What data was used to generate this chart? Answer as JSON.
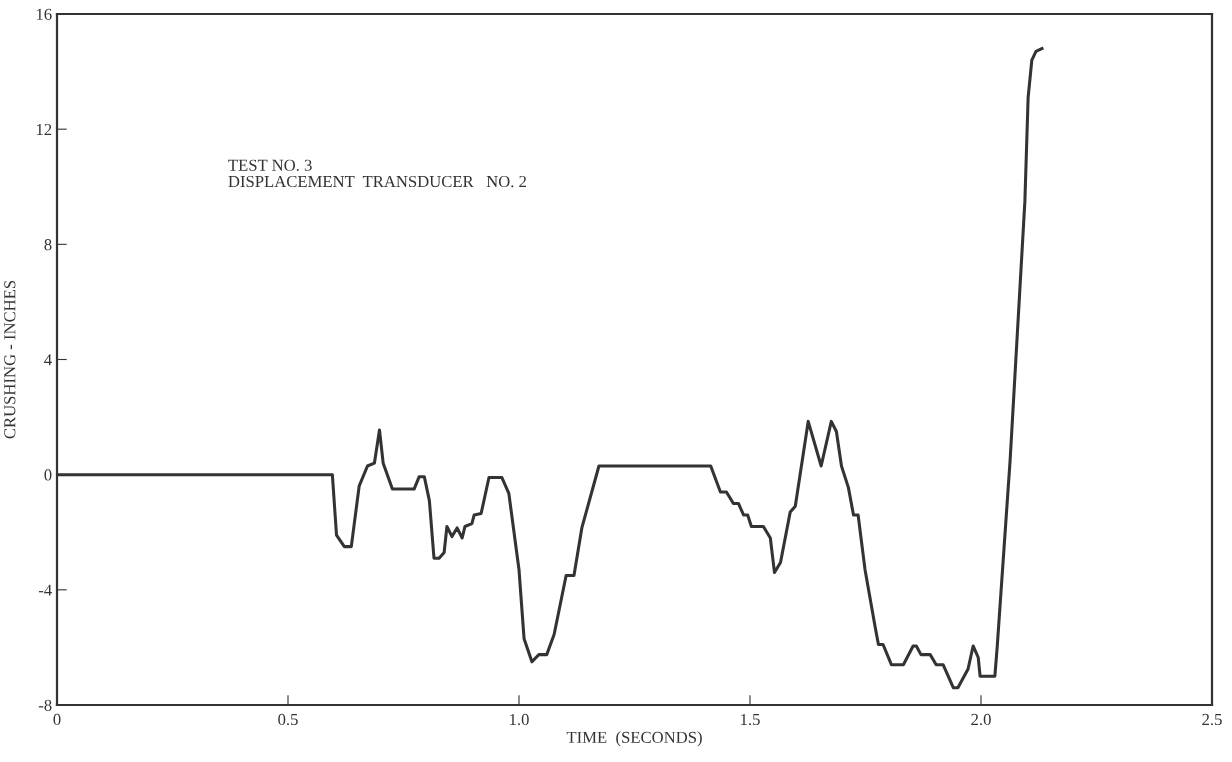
{
  "chart_data": {
    "type": "line",
    "xlabel": "TIME  (SECONDS)",
    "ylabel": "CRUSHING - INCHES",
    "annotations": [
      "TEST NO. 3\nDISPLACEMENT  TRANSDUCER   NO. 2"
    ],
    "xlim": [
      0,
      2.5
    ],
    "ylim": [
      -8,
      16
    ],
    "xticks": [
      0,
      {
        "value": 0.5,
        "label": "0.5"
      },
      {
        "value": 1.0,
        "label": "1.0"
      },
      {
        "value": 1.5,
        "label": "1.5"
      },
      {
        "value": 2.0,
        "label": "2.0"
      },
      {
        "value": 2.5,
        "label": "2.5"
      }
    ],
    "yticks": [
      -8,
      -4,
      0,
      4,
      8,
      12,
      16
    ],
    "grid": false,
    "marker": "none",
    "line_style": "solid",
    "series": [
      {
        "color": "#333333",
        "x": [
          0,
          0.596,
          0.605,
          0.622,
          0.637,
          0.654,
          0.672,
          0.687,
          0.698,
          0.706,
          0.726,
          0.773,
          0.784,
          0.795,
          0.806,
          0.816,
          0.827,
          0.838,
          0.844,
          0.855,
          0.866,
          0.877,
          0.883,
          0.898,
          0.903,
          0.918,
          0.935,
          0.963,
          0.978,
          1.0,
          1.011,
          1.028,
          1.043,
          1.06,
          1.076,
          1.102,
          1.119,
          1.136,
          1.173,
          1.415,
          1.436,
          1.449,
          1.464,
          1.475,
          1.486,
          1.495,
          1.503,
          1.529,
          1.544,
          1.553,
          1.566,
          1.587,
          1.598,
          1.626,
          1.654,
          1.676,
          1.687,
          1.698,
          1.713,
          1.724,
          1.734,
          1.749,
          1.771,
          1.778,
          1.788,
          1.806,
          1.821,
          1.832,
          1.853,
          1.86,
          1.87,
          1.89,
          1.903,
          1.918,
          1.94,
          1.95,
          1.972,
          1.983,
          1.994,
          1.998,
          2.03,
          2.035,
          2.063,
          2.095,
          2.102,
          2.11,
          2.119,
          2.132
        ],
        "values": [
          0,
          0,
          -2.1,
          -2.5,
          -2.5,
          -0.4,
          0.3,
          0.4,
          1.55,
          0.4,
          -0.5,
          -0.5,
          -0.07,
          -0.07,
          -0.9,
          -2.9,
          -2.9,
          -2.7,
          -1.8,
          -2.15,
          -1.85,
          -2.2,
          -1.8,
          -1.7,
          -1.4,
          -1.35,
          -0.1,
          -0.1,
          -0.65,
          -3.3,
          -5.7,
          -6.5,
          -6.25,
          -6.25,
          -5.55,
          -3.5,
          -3.5,
          -1.85,
          0.3,
          0.3,
          -0.6,
          -0.6,
          -1.0,
          -1.0,
          -1.4,
          -1.4,
          -1.8,
          -1.8,
          -2.2,
          -3.4,
          -3.05,
          -1.3,
          -1.1,
          1.85,
          0.3,
          1.85,
          1.5,
          0.3,
          -0.45,
          -1.4,
          -1.4,
          -3.3,
          -5.3,
          -5.9,
          -5.9,
          -6.6,
          -6.6,
          -6.6,
          -5.95,
          -5.95,
          -6.25,
          -6.25,
          -6.6,
          -6.6,
          -7.4,
          -7.4,
          -6.75,
          -5.95,
          -6.35,
          -7.0,
          -7.0,
          -6.0,
          0.5,
          9.5,
          13.1,
          14.4,
          14.7,
          14.8
        ]
      }
    ]
  }
}
